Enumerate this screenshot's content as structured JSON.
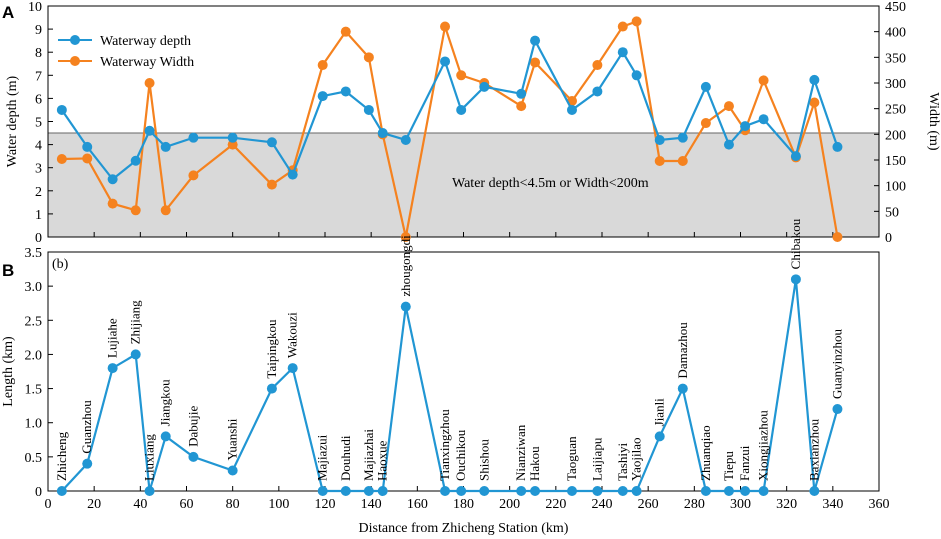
{
  "chart_data": [
    {
      "panel": "A",
      "type": "line",
      "x": [
        6,
        17,
        28,
        38,
        44,
        51,
        63,
        80,
        97,
        106,
        119,
        129,
        139,
        145,
        155,
        172,
        179,
        189,
        205,
        211,
        227,
        238,
        249,
        255,
        265,
        275,
        285,
        295,
        302,
        310,
        324,
        332,
        342
      ],
      "series": [
        {
          "name": "Waterway  depth",
          "axis": "left",
          "color": "#2196d3",
          "values": [
            5.5,
            3.9,
            2.5,
            3.3,
            4.6,
            3.9,
            4.3,
            4.3,
            4.1,
            2.7,
            6.1,
            6.3,
            5.5,
            4.5,
            4.2,
            7.6,
            5.5,
            6.5,
            6.2,
            8.5,
            5.5,
            6.3,
            8.0,
            7.0,
            4.2,
            4.3,
            6.5,
            4.0,
            4.8,
            5.1,
            3.5,
            6.8,
            3.9
          ]
        },
        {
          "name": "Waterway  Width",
          "axis": "right",
          "color": "#f5821f",
          "values": [
            152,
            153,
            65,
            52,
            300,
            52,
            120,
            180,
            102,
            130,
            335,
            400,
            350,
            200,
            0,
            410,
            315,
            300,
            255,
            340,
            265,
            335,
            410,
            420,
            148,
            148,
            222,
            255,
            208,
            305,
            155,
            262,
            0
          ]
        }
      ],
      "xlim": [
        0,
        360
      ],
      "ylim_left": [
        0,
        10
      ],
      "ylim_right": [
        0,
        450
      ],
      "yticks_left": [
        "0",
        "1",
        "2",
        "3",
        "4",
        "5",
        "6",
        "7",
        "8",
        "9",
        "10"
      ],
      "yticks_right": [
        "0",
        "50",
        "100",
        "150",
        "200",
        "250",
        "300",
        "350",
        "400",
        "450"
      ],
      "ylabel_left": "Water depth (m)",
      "ylabel_right": "Width (m)",
      "threshold_depth": 4.5,
      "shade_color": "#d9d9d9",
      "annotation": "Water depth<4.5m  or  Width<200m",
      "legend_position": "top-left"
    },
    {
      "panel": "B",
      "subtitle": "(b)",
      "type": "line",
      "color": "#2196d3",
      "series": [
        {
          "name": "Length",
          "x": [
            6,
            17,
            28,
            38,
            44,
            51,
            63,
            80,
            97,
            106,
            119,
            129,
            139,
            145,
            155,
            172,
            179,
            189,
            205,
            211,
            227,
            238,
            249,
            255,
            265,
            275,
            285,
            295,
            302,
            310,
            324,
            332,
            342
          ],
          "values": [
            0,
            0.4,
            1.8,
            2.0,
            0,
            0.8,
            0.5,
            0.3,
            1.5,
            1.8,
            0,
            0,
            0,
            0,
            2.7,
            0,
            0,
            0,
            0,
            0,
            0,
            0,
            0,
            0,
            0.8,
            1.5,
            0,
            0,
            0,
            0,
            3.1,
            0,
            1.2
          ]
        }
      ],
      "stations": [
        "Zhicheng",
        "Guanzhou",
        "Lujiahe",
        "Zhijiang",
        "Liuxiang",
        "Jiangkou",
        "Dabujie",
        "Yuanshi",
        "Taipingkou",
        "Wakouzi",
        "Majiazui",
        "Douhudi",
        "Majiazhai",
        "Haoxue",
        "zhougongdi",
        "Tianxingzhou",
        "Ouchikou",
        "Shishou",
        "Nianziwan",
        "Hakou",
        "Taoguan",
        "Laijiapu",
        "Tashiyi",
        "Yaojilao",
        "Jianli",
        "Damazhou",
        "Zhuanqiao",
        "Tiepu",
        "Fanzui",
        "Xiongjiazhou",
        "Chibakou",
        "Baxianzhou",
        "Guanyinzhou"
      ],
      "xlim": [
        0,
        360
      ],
      "ylim": [
        0,
        3.5
      ],
      "xticks": [
        "0",
        "20",
        "40",
        "60",
        "80",
        "100",
        "120",
        "140",
        "160",
        "180",
        "200",
        "220",
        "240",
        "260",
        "280",
        "300",
        "320",
        "340",
        "360"
      ],
      "yticks": [
        "0",
        "0.5",
        "1.0",
        "1.5",
        "2.0",
        "2.5",
        "3.0",
        "3.5"
      ],
      "xlabel": "Distance from Zhicheng Station (km)",
      "ylabel": "Length (km)"
    }
  ]
}
